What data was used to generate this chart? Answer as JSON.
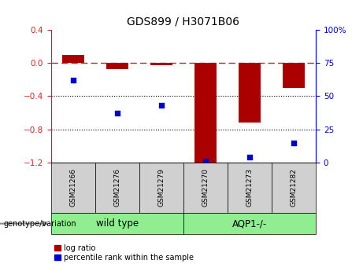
{
  "title": "GDS899 / H3071B06",
  "samples": [
    "GSM21266",
    "GSM21276",
    "GSM21279",
    "GSM21270",
    "GSM21273",
    "GSM21282"
  ],
  "log_ratio": [
    0.1,
    -0.07,
    -0.03,
    -1.2,
    -0.72,
    -0.3
  ],
  "percentile_rank": [
    62,
    37,
    43,
    1,
    4,
    15
  ],
  "ylim_left": [
    -1.2,
    0.4
  ],
  "ylim_right": [
    0,
    100
  ],
  "yticks_left": [
    -1.2,
    -0.8,
    -0.4,
    0.0,
    0.4
  ],
  "yticks_right": [
    0,
    25,
    50,
    75,
    100
  ],
  "ytick_right_labels": [
    "0",
    "25",
    "50",
    "75",
    "100%"
  ],
  "hline_y": 0.0,
  "dotted_lines": [
    -0.4,
    -0.8
  ],
  "bar_color": "#aa0000",
  "point_color": "#0000cc",
  "bar_width": 0.5,
  "groups": [
    {
      "label": "wild type",
      "indices": [
        0,
        1,
        2
      ],
      "color": "#90ee90"
    },
    {
      "label": "AQP1-/-",
      "indices": [
        3,
        4,
        5
      ],
      "color": "#90ee90"
    }
  ],
  "group_label": "genotype/variation",
  "legend_bar": "log ratio",
  "legend_point": "percentile rank within the sample",
  "tick_label_fontsize": 7.5,
  "title_fontsize": 10,
  "sample_box_color": "#d0d0d0",
  "group_box_color": "#90ee90"
}
